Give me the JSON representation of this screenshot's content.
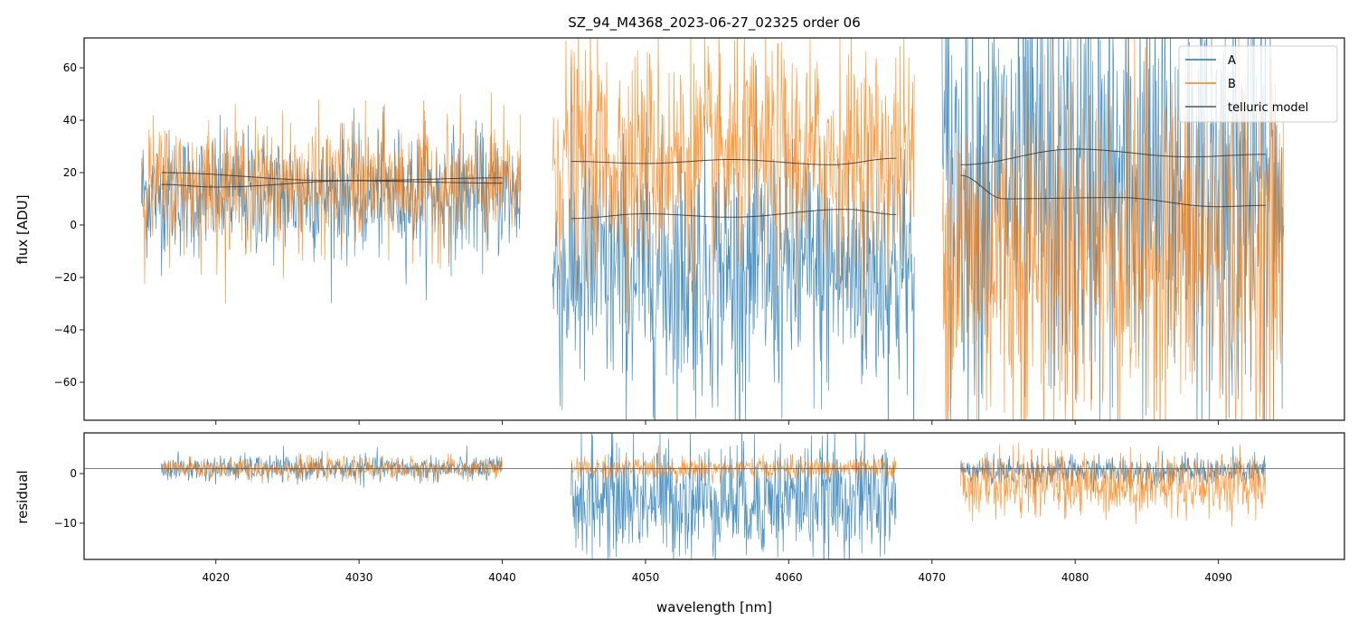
{
  "chart_data": [
    {
      "type": "line",
      "title": "SZ_94_M4368_2023-06-27_02325  order 06",
      "xlabel": "",
      "ylabel": "flux [ADU]",
      "xlim": [
        4010.8,
        4098.8
      ],
      "ylim": [
        -74.5,
        71.4
      ],
      "yticks": [
        -60,
        -40,
        -20,
        0,
        20,
        40,
        60
      ],
      "yticklabels": [
        "−60",
        "−40",
        "−20",
        "0",
        "20",
        "40",
        "60"
      ],
      "xticks": [
        4020,
        4030,
        4040,
        4050,
        4060,
        4070,
        4080,
        4090
      ],
      "legend": {
        "placement": "top-right",
        "entries": [
          "A",
          "B",
          "telluric model"
        ]
      },
      "series": [
        {
          "name": "A",
          "color": "#1f77b4",
          "segments": [
            {
              "x_range": [
                4014.8,
                4041.3
              ],
              "mean": 12,
              "std": 12
            },
            {
              "x_range": [
                4043.5,
                4068.8
              ],
              "mean": -18,
              "std": 25
            },
            {
              "x_range": [
                4070.7,
                4094.6
              ],
              "mean": 15,
              "std": 42
            }
          ]
        },
        {
          "name": "B",
          "color": "#ff7f0e",
          "segments": [
            {
              "x_range": [
                4014.8,
                4041.3
              ],
              "mean": 15,
              "std": 12
            },
            {
              "x_range": [
                4043.5,
                4068.8
              ],
              "mean": 25,
              "std": 22
            },
            {
              "x_range": [
                4070.7,
                4094.6
              ],
              "mean": -10,
              "std": 35
            }
          ]
        },
        {
          "name": "telluric model",
          "color": "#333333",
          "curves": [
            {
              "x": [
                4016.2,
                4028,
                4040
              ],
              "y": [
                20,
                17,
                16
              ]
            },
            {
              "x": [
                4016.2,
                4020,
                4030,
                4040
              ],
              "y": [
                15.5,
                14.5,
                17,
                18
              ]
            },
            {
              "x": [
                4044.8,
                4050,
                4056,
                4063,
                4067.5
              ],
              "y": [
                24.3,
                23.5,
                25,
                23,
                25.5
              ]
            },
            {
              "x": [
                4044.8,
                4050,
                4056,
                4064,
                4067.5
              ],
              "y": [
                2.5,
                4.3,
                3,
                6,
                4
              ]
            },
            {
              "x": [
                4072,
                4080,
                4088,
                4093.3
              ],
              "y": [
                23,
                29,
                26,
                27
              ]
            },
            {
              "x": [
                4072,
                4075,
                4083,
                4090,
                4093.3
              ],
              "y": [
                19,
                10,
                10.5,
                7,
                7.5
              ]
            }
          ]
        }
      ]
    },
    {
      "type": "line",
      "ylabel": "residual",
      "xlabel": "wavelength [nm]",
      "xlim": [
        4010.8,
        4098.8
      ],
      "ylim": [
        -17.3,
        8.2
      ],
      "yticks": [
        -10,
        0
      ],
      "yticklabels": [
        "−10",
        "0"
      ],
      "xticks": [
        4020,
        4030,
        4040,
        4050,
        4060,
        4070,
        4080,
        4090
      ],
      "reference_line": 1,
      "series": [
        {
          "name": "A",
          "color": "#1f77b4",
          "segments": [
            {
              "x_range": [
                4016.2,
                4040
              ],
              "mean": 1,
              "std": 1.3
            },
            {
              "x_range": [
                4044.8,
                4067.5
              ],
              "mean": -5,
              "std": 6
            },
            {
              "x_range": [
                4072,
                4093.3
              ],
              "mean": 0.5,
              "std": 1.5
            }
          ]
        },
        {
          "name": "B",
          "color": "#ff7f0e",
          "segments": [
            {
              "x_range": [
                4016.2,
                4040
              ],
              "mean": 1,
              "std": 1.1
            },
            {
              "x_range": [
                4044.8,
                4067.5
              ],
              "mean": 1,
              "std": 1.1
            },
            {
              "x_range": [
                4072,
                4093.3
              ],
              "mean": -2,
              "std": 3.2
            }
          ]
        }
      ]
    }
  ]
}
